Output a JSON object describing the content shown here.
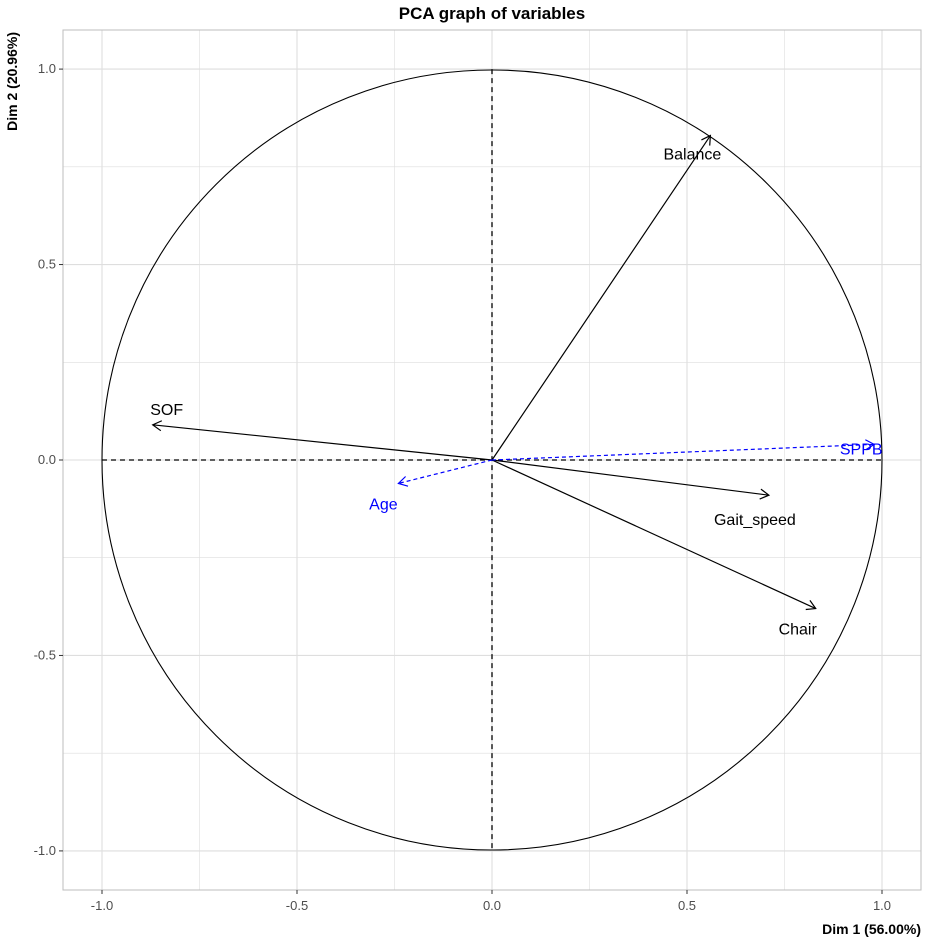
{
  "chart_data": {
    "type": "scatter",
    "title": "PCA graph of variables",
    "xlabel": "Dim 1 (56.00%)",
    "ylabel": "Dim 2 (20.96%)",
    "xlim": [
      -1.1,
      1.1
    ],
    "ylim": [
      -1.1,
      1.1
    ],
    "grid": true,
    "x_ticks": [
      -1.0,
      -0.5,
      0.0,
      0.5,
      1.0
    ],
    "y_ticks": [
      -1.0,
      -0.5,
      0.0,
      0.5,
      1.0
    ],
    "x_tick_labels": [
      "-1.0",
      "-0.5",
      "0.0",
      "0.5",
      "1.0"
    ],
    "y_tick_labels": [
      "-1.0",
      "-0.5",
      "0.0",
      "0.5",
      "1.0"
    ],
    "unit_circle": true,
    "active_variables": [
      {
        "name": "Balance",
        "x": 0.56,
        "y": 0.83
      },
      {
        "name": "SOF",
        "x": -0.87,
        "y": 0.09
      },
      {
        "name": "Gait_speed",
        "x": 0.71,
        "y": -0.09
      },
      {
        "name": "Chair",
        "x": 0.83,
        "y": -0.38
      }
    ],
    "supplementary_variables": [
      {
        "name": "SPPB",
        "x": 0.98,
        "y": 0.04
      },
      {
        "name": "Age",
        "x": -0.24,
        "y": -0.06
      }
    ],
    "colors": {
      "active": "#000000",
      "supplementary": "#0000ff",
      "grid": "#dedede",
      "axis_text": "#4d4d4d"
    }
  }
}
